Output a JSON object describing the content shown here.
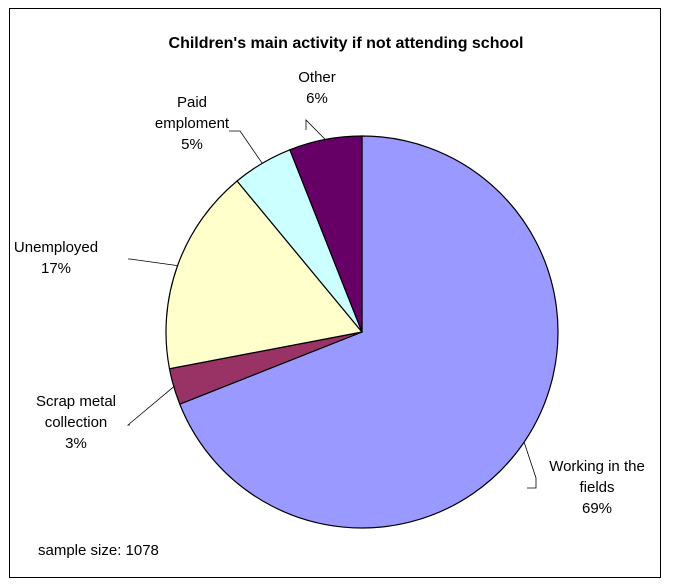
{
  "chart_data": {
    "type": "pie",
    "title": "Children's main activity if not attending school",
    "slices": [
      {
        "label_lines": [
          "Working in the",
          "fields"
        ],
        "pct_text": "69%",
        "value": 69,
        "color": "#9999ff"
      },
      {
        "label_lines": [
          "Scrap metal",
          "collection"
        ],
        "pct_text": "3%",
        "value": 3,
        "color": "#993366"
      },
      {
        "label_lines": [
          "Unemployed"
        ],
        "pct_text": "17%",
        "value": 17,
        "color": "#ffffcc"
      },
      {
        "label_lines": [
          "Paid",
          "emploment"
        ],
        "pct_text": "5%",
        "value": 5,
        "color": "#ccffff"
      },
      {
        "label_lines": [
          "Other"
        ],
        "pct_text": "6%",
        "value": 6,
        "color": "#660066"
      }
    ],
    "legend": "none"
  },
  "note": "sample size: 1078"
}
